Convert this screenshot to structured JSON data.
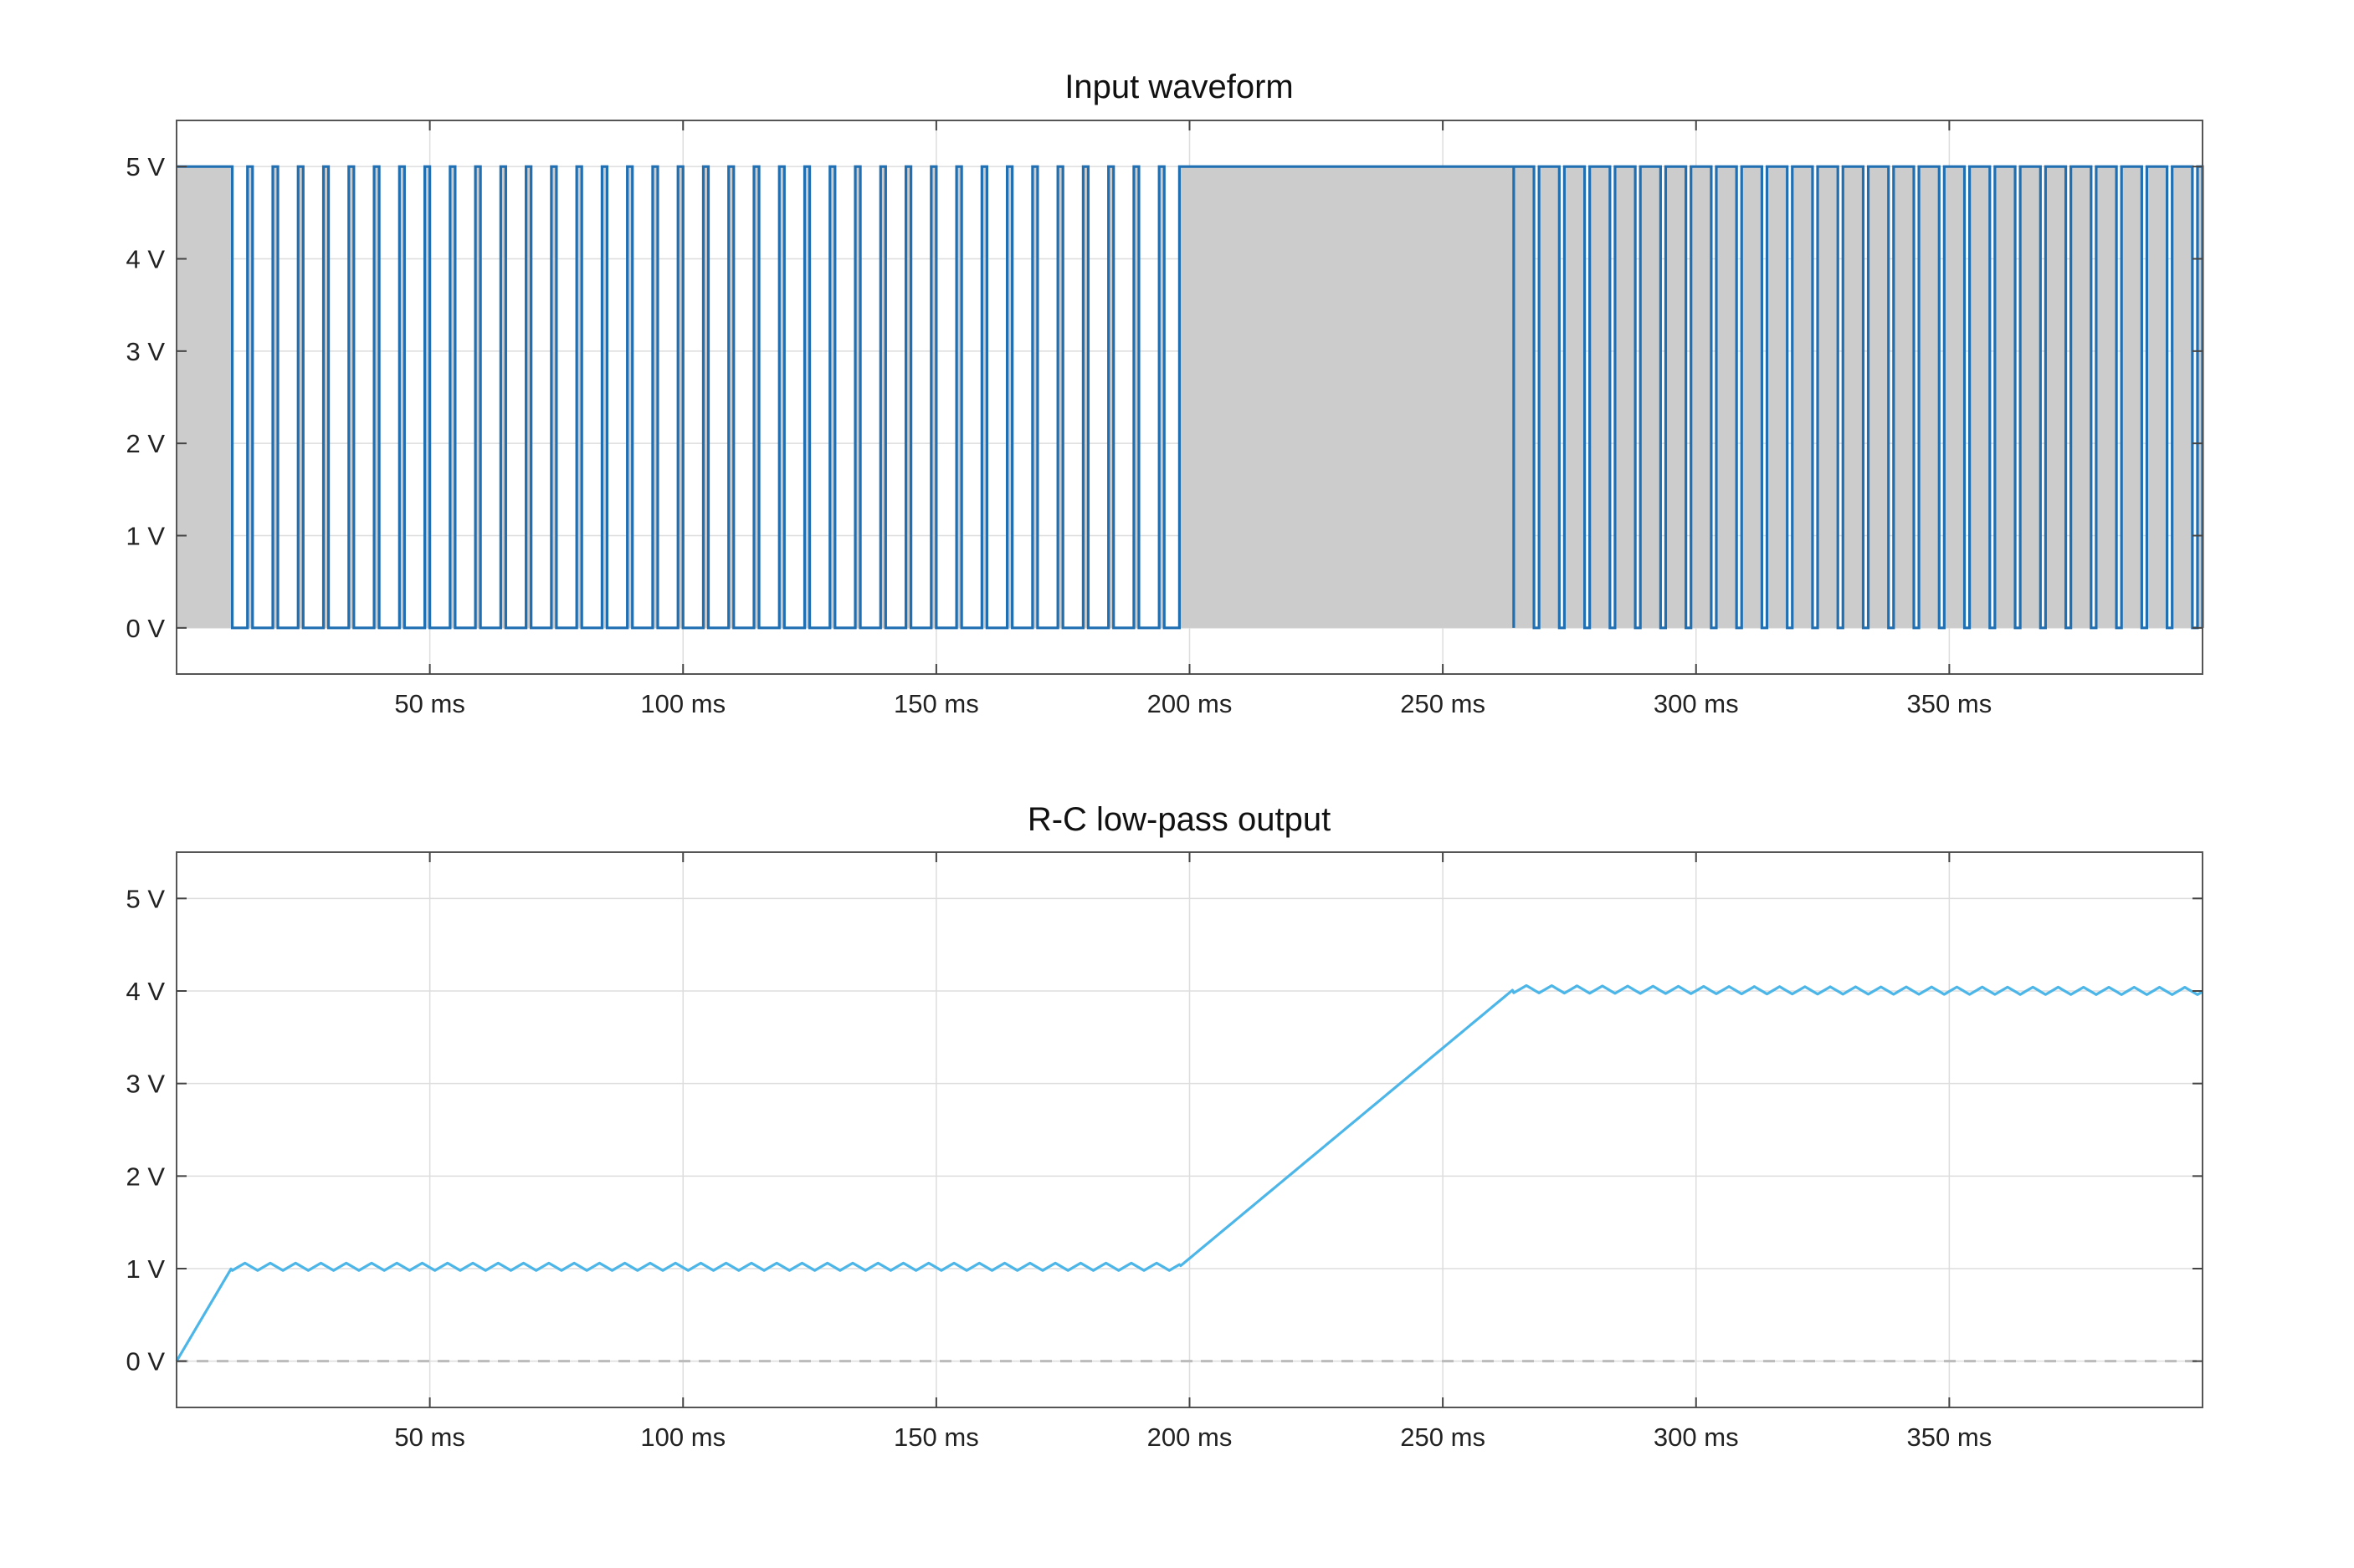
{
  "chart_data": [
    {
      "type": "line",
      "title": "Input waveform",
      "xlabel": "",
      "ylabel": "",
      "xlim": [
        0,
        400
      ],
      "ylim": [
        -0.5,
        5.5
      ],
      "x_ticks": [
        50,
        100,
        150,
        200,
        250,
        300,
        350
      ],
      "x_tick_labels": [
        "50 ms",
        "100 ms",
        "150 ms",
        "200 ms",
        "250 ms",
        "300 ms",
        "350 ms"
      ],
      "y_ticks": [
        0,
        1,
        2,
        3,
        4,
        5
      ],
      "y_tick_labels": [
        "0 V",
        "1 V",
        "2 V",
        "3 V",
        "4 V",
        "5 V"
      ],
      "grid": true,
      "fill_under": true,
      "colors": {
        "line": "#1f6fb2",
        "fill": "#cccccc"
      },
      "series": [
        {
          "shape": "pwm",
          "low": 0,
          "high": 5,
          "segments": [
            {
              "start": 0,
              "end": 11,
              "level": 5
            },
            {
              "start": 11,
              "end": 198,
              "period": 5,
              "duty": 0.2,
              "first_pulse_at": 14
            },
            {
              "start": 198,
              "end": 264,
              "level": 5
            },
            {
              "start": 264,
              "end": 400,
              "period": 5,
              "duty": 0.8
            }
          ]
        }
      ]
    },
    {
      "type": "line",
      "title": "R-C low-pass output",
      "xlabel": "",
      "ylabel": "",
      "xlim": [
        0,
        400
      ],
      "ylim": [
        -0.5,
        5.5
      ],
      "x_ticks": [
        50,
        100,
        150,
        200,
        250,
        300,
        350
      ],
      "x_tick_labels": [
        "50 ms",
        "100 ms",
        "150 ms",
        "200 ms",
        "250 ms",
        "300 ms",
        "350 ms"
      ],
      "y_ticks": [
        0,
        1,
        2,
        3,
        4,
        5
      ],
      "y_tick_labels": [
        "0 V",
        "1 V",
        "2 V",
        "3 V",
        "4 V",
        "5 V"
      ],
      "grid": true,
      "reference_line": {
        "y": 0,
        "style": "dashed"
      },
      "colors": {
        "line": "#4db6e8",
        "reference": "#bbbbbb"
      },
      "series": [
        {
          "shape": "rc_response",
          "points": [
            [
              0,
              0
            ],
            [
              11,
              1.02
            ],
            [
              198,
              1.02
            ],
            [
              264,
              4.02
            ],
            [
              400,
              4.0
            ]
          ],
          "ripple_amplitude": 0.04,
          "ripple_period": 5,
          "ripple_ranges": [
            [
              11,
              198
            ],
            [
              264,
              400
            ]
          ]
        }
      ]
    }
  ]
}
